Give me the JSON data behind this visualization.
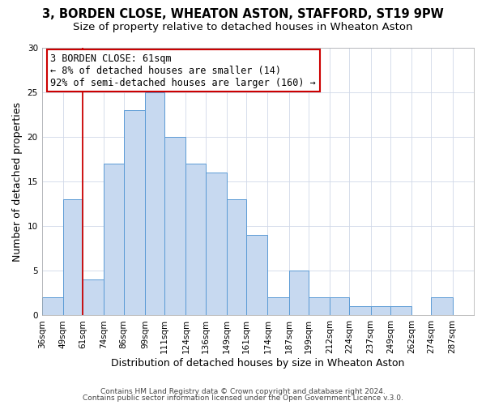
{
  "title": "3, BORDEN CLOSE, WHEATON ASTON, STAFFORD, ST19 9PW",
  "subtitle": "Size of property relative to detached houses in Wheaton Aston",
  "xlabel": "Distribution of detached houses by size in Wheaton Aston",
  "ylabel": "Number of detached properties",
  "bin_labels": [
    "36sqm",
    "49sqm",
    "61sqm",
    "74sqm",
    "86sqm",
    "99sqm",
    "111sqm",
    "124sqm",
    "136sqm",
    "149sqm",
    "161sqm",
    "174sqm",
    "187sqm",
    "199sqm",
    "212sqm",
    "224sqm",
    "237sqm",
    "249sqm",
    "262sqm",
    "274sqm",
    "287sqm"
  ],
  "bin_edges": [
    36,
    49,
    61,
    74,
    86,
    99,
    111,
    124,
    136,
    149,
    161,
    174,
    187,
    199,
    212,
    224,
    237,
    249,
    262,
    274,
    287,
    300
  ],
  "counts": [
    2,
    13,
    4,
    17,
    23,
    25,
    20,
    17,
    16,
    13,
    9,
    2,
    5,
    2,
    2,
    1,
    1,
    1,
    0,
    2,
    0
  ],
  "bar_color": "#c7d9f0",
  "bar_edge_color": "#5b9bd5",
  "vline_x": 61,
  "vline_color": "#cc0000",
  "annotation_line1": "3 BORDEN CLOSE: 61sqm",
  "annotation_line2": "← 8% of detached houses are smaller (14)",
  "annotation_line3": "92% of semi-detached houses are larger (160) →",
  "annotation_box_color": "#ffffff",
  "annotation_box_edge": "#cc0000",
  "ylim": [
    0,
    30
  ],
  "yticks": [
    0,
    5,
    10,
    15,
    20,
    25,
    30
  ],
  "footer1": "Contains HM Land Registry data © Crown copyright and database right 2024.",
  "footer2": "Contains public sector information licensed under the Open Government Licence v.3.0.",
  "background_color": "#ffffff",
  "grid_color": "#d0d8e8",
  "title_fontsize": 10.5,
  "subtitle_fontsize": 9.5,
  "xlabel_fontsize": 9,
  "ylabel_fontsize": 9,
  "tick_fontsize": 7.5,
  "annotation_fontsize": 8.5,
  "footer_fontsize": 6.5
}
